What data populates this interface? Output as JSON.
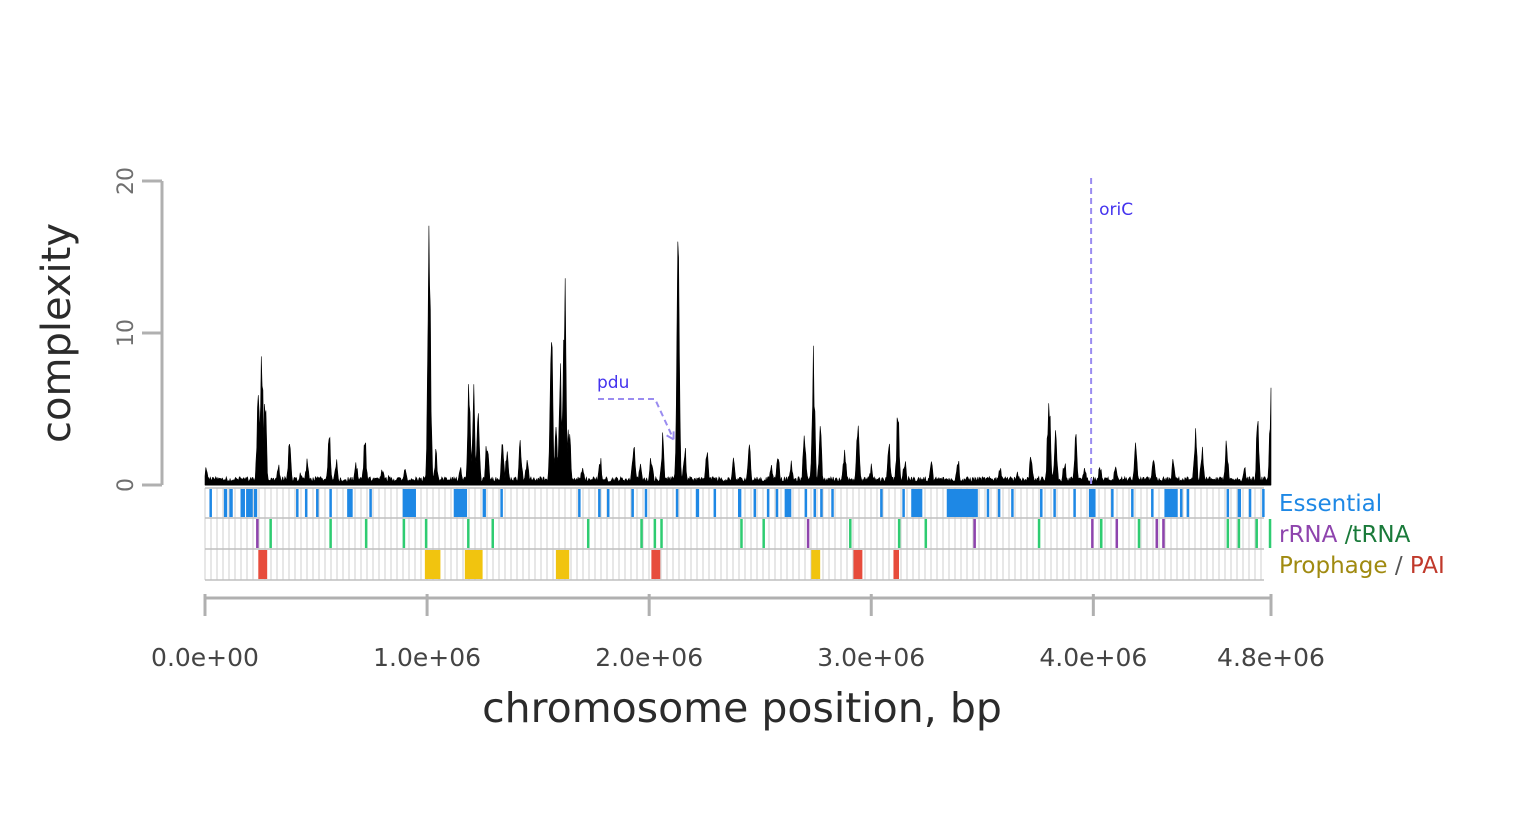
{
  "chart_data": {
    "type": "area",
    "ylabel": "complexity",
    "xlabel": "chromosome position, bp",
    "xlim": [
      0,
      4800000
    ],
    "ylim": [
      0,
      20
    ],
    "y_ticks": [
      0,
      10,
      20
    ],
    "y_tick_labels": [
      "0",
      "10",
      "20"
    ],
    "x_ticks": [
      0,
      1000000,
      2000000,
      3000000,
      4000000,
      4800000
    ],
    "x_tick_labels": [
      "0.0e+00",
      "1.0e+06",
      "2.0e+06",
      "3.0e+06",
      "4.0e+06",
      "4.8e+06"
    ],
    "series": [
      {
        "color": "#000000",
        "baseline": 0.2,
        "peaks": [
          [
            5000,
            1.2
          ],
          [
            40000,
            0.6
          ],
          [
            160000,
            0.6
          ],
          [
            240000,
            7.0
          ],
          [
            255000,
            10.0
          ],
          [
            270000,
            6.5
          ],
          [
            330000,
            1.5
          ],
          [
            380000,
            3.2
          ],
          [
            430000,
            1.0
          ],
          [
            460000,
            1.8
          ],
          [
            560000,
            3.7
          ],
          [
            590000,
            2.0
          ],
          [
            680000,
            1.8
          ],
          [
            720000,
            3.5
          ],
          [
            800000,
            1.5
          ],
          [
            830000,
            0.8
          ],
          [
            900000,
            1.2
          ],
          [
            1010000,
            19.0
          ],
          [
            1040000,
            2.5
          ],
          [
            1150000,
            1.5
          ],
          [
            1190000,
            8.8
          ],
          [
            1210000,
            7.0
          ],
          [
            1230000,
            5.0
          ],
          [
            1270000,
            4.0
          ],
          [
            1340000,
            3.0
          ],
          [
            1360000,
            2.5
          ],
          [
            1420000,
            3.5
          ],
          [
            1450000,
            2.0
          ],
          [
            1560000,
            11.0
          ],
          [
            1580000,
            4.5
          ],
          [
            1600000,
            9.0
          ],
          [
            1620000,
            16.3
          ],
          [
            1640000,
            5.0
          ],
          [
            1700000,
            1.5
          ],
          [
            1780000,
            2.0
          ],
          [
            1930000,
            3.6
          ],
          [
            1960000,
            1.5
          ],
          [
            2010000,
            2.5
          ],
          [
            2060000,
            3.5
          ],
          [
            2130000,
            19.0
          ],
          [
            2160000,
            3.0
          ],
          [
            2260000,
            2.5
          ],
          [
            2380000,
            1.8
          ],
          [
            2450000,
            3.0
          ],
          [
            2550000,
            1.5
          ],
          [
            2580000,
            2.2
          ],
          [
            2640000,
            1.7
          ],
          [
            2700000,
            4.5
          ],
          [
            2740000,
            10.5
          ],
          [
            2770000,
            4.0
          ],
          [
            2880000,
            3.0
          ],
          [
            2940000,
            5.2
          ],
          [
            3000000,
            1.5
          ],
          [
            3080000,
            3.2
          ],
          [
            3120000,
            5.5
          ],
          [
            3150000,
            2.0
          ],
          [
            3270000,
            1.8
          ],
          [
            3390000,
            2.2
          ],
          [
            3580000,
            1.5
          ],
          [
            3660000,
            1.0
          ],
          [
            3720000,
            2.5
          ],
          [
            3800000,
            7.7
          ],
          [
            3830000,
            4.0
          ],
          [
            3870000,
            2.0
          ],
          [
            3920000,
            3.8
          ],
          [
            3960000,
            1.5
          ],
          [
            4030000,
            1.5
          ],
          [
            4100000,
            1.4
          ],
          [
            4190000,
            2.8
          ],
          [
            4270000,
            2.5
          ],
          [
            4360000,
            2.0
          ],
          [
            4460000,
            4.0
          ],
          [
            4490000,
            3.0
          ],
          [
            4600000,
            3.5
          ],
          [
            4680000,
            1.5
          ],
          [
            4740000,
            4.5
          ],
          [
            4800000,
            6.5
          ],
          [
            4815000,
            7.3
          ],
          [
            4830000,
            4.0
          ],
          [
            4860000,
            1.5
          ]
        ]
      }
    ],
    "annotations": [
      {
        "text": "oriC",
        "x": 3990000,
        "color": "#4433ee",
        "line_style": "dashed vertical"
      },
      {
        "text": "pdu",
        "x": 2110000,
        "y": 3.0,
        "color": "#4433ee",
        "line_style": "dashed pointer"
      }
    ],
    "tracks": [
      {
        "name": "Essential",
        "legend": [
          "Essential"
        ],
        "legend_colors": [
          "#1e88e5"
        ],
        "features": [
          [
            20000,
            30000
          ],
          [
            85000,
            100000
          ],
          [
            110000,
            125000
          ],
          [
            160000,
            180000
          ],
          [
            185000,
            215000
          ],
          [
            220000,
            235000
          ],
          [
            410000,
            420000
          ],
          [
            450000,
            460000
          ],
          [
            500000,
            510000
          ],
          [
            560000,
            570000
          ],
          [
            640000,
            665000
          ],
          [
            740000,
            745000
          ],
          [
            890000,
            950000
          ],
          [
            1120000,
            1180000
          ],
          [
            1250000,
            1265000
          ],
          [
            1330000,
            1335000
          ],
          [
            1680000,
            1685000
          ],
          [
            1770000,
            1780000
          ],
          [
            1810000,
            1820000
          ],
          [
            1920000,
            1925000
          ],
          [
            1980000,
            1985000
          ],
          [
            2120000,
            2125000
          ],
          [
            2210000,
            2225000
          ],
          [
            2290000,
            2300000
          ],
          [
            2400000,
            2415000
          ],
          [
            2470000,
            2480000
          ],
          [
            2530000,
            2540000
          ],
          [
            2570000,
            2580000
          ],
          [
            2610000,
            2640000
          ],
          [
            2700000,
            2705000
          ],
          [
            2740000,
            2750000
          ],
          [
            2770000,
            2775000
          ],
          [
            2820000,
            2830000
          ],
          [
            3040000,
            3050000
          ],
          [
            3140000,
            3150000
          ],
          [
            3180000,
            3230000
          ],
          [
            3340000,
            3480000
          ],
          [
            3520000,
            3530000
          ],
          [
            3570000,
            3580000
          ],
          [
            3630000,
            3640000
          ],
          [
            3760000,
            3770000
          ],
          [
            3820000,
            3830000
          ],
          [
            3910000,
            3920000
          ],
          [
            3980000,
            4010000
          ],
          [
            4080000,
            4090000
          ],
          [
            4170000,
            4180000
          ],
          [
            4260000,
            4270000
          ],
          [
            4320000,
            4380000
          ],
          [
            4390000,
            4400000
          ],
          [
            4420000,
            4430000
          ],
          [
            4600000,
            4605000
          ],
          [
            4650000,
            4665000
          ],
          [
            4700000,
            4710000
          ],
          [
            4760000,
            4770000
          ]
        ]
      },
      {
        "name": "rRNA / tRNA",
        "legend": [
          "rRNA",
          "/tRNA"
        ],
        "legend_colors": [
          "#8e44ad",
          "#1a7a3a"
        ],
        "features": [
          [
            230000,
            237000,
            "rRNA"
          ],
          [
            290000,
            295000,
            "tRNA"
          ],
          [
            560000,
            565000,
            "tRNA"
          ],
          [
            720000,
            725000,
            "tRNA"
          ],
          [
            890000,
            895000,
            "tRNA"
          ],
          [
            990000,
            995000,
            "tRNA"
          ],
          [
            1180000,
            1185000,
            "tRNA"
          ],
          [
            1290000,
            1295000,
            "tRNA"
          ],
          [
            1720000,
            1725000,
            "tRNA"
          ],
          [
            1960000,
            1965000,
            "tRNA"
          ],
          [
            2020000,
            2025000,
            "tRNA"
          ],
          [
            2050000,
            2055000,
            "tRNA"
          ],
          [
            2410000,
            2415000,
            "tRNA"
          ],
          [
            2510000,
            2515000,
            "tRNA"
          ],
          [
            2710000,
            2717000,
            "rRNA"
          ],
          [
            2900000,
            2905000,
            "tRNA"
          ],
          [
            3120000,
            3125000,
            "tRNA"
          ],
          [
            3240000,
            3245000,
            "tRNA"
          ],
          [
            3460000,
            3467000,
            "rRNA"
          ],
          [
            3750000,
            3755000,
            "tRNA"
          ],
          [
            3990000,
            3997000,
            "rRNA"
          ],
          [
            4030000,
            4035000,
            "tRNA"
          ],
          [
            4100000,
            4107000,
            "rRNA"
          ],
          [
            4200000,
            4205000,
            "tRNA"
          ],
          [
            4280000,
            4287000,
            "rRNA"
          ],
          [
            4310000,
            4317000,
            "rRNA"
          ],
          [
            4600000,
            4605000,
            "tRNA"
          ],
          [
            4650000,
            4655000,
            "tRNA"
          ],
          [
            4730000,
            4735000,
            "tRNA"
          ],
          [
            4790000,
            4795000,
            "tRNA"
          ]
        ]
      },
      {
        "name": "Prophage / PAI",
        "legend": [
          "Prophage",
          "/",
          "PAI"
        ],
        "legend_colors": [
          "#a08a10",
          "#555555",
          "#c0392b"
        ],
        "features": [
          [
            240000,
            280000,
            "PAI"
          ],
          [
            990000,
            1060000,
            "Prophage"
          ],
          [
            1170000,
            1250000,
            "Prophage"
          ],
          [
            1580000,
            1640000,
            "Prophage"
          ],
          [
            2010000,
            2050000,
            "PAI"
          ],
          [
            2730000,
            2770000,
            "Prophage"
          ],
          [
            2920000,
            2960000,
            "PAI"
          ],
          [
            3100000,
            3125000,
            "PAI"
          ]
        ]
      }
    ],
    "colors": {
      "profile": "#000000",
      "essential": "#1e88e5",
      "rrna": "#8e44ad",
      "trna": "#2ecc71",
      "prophage": "#f1c40f",
      "pai": "#e74c3c",
      "annotation": "#4433ee",
      "axis": "#b0b0b0"
    },
    "grid": true,
    "legend_position": "right of tracks"
  }
}
